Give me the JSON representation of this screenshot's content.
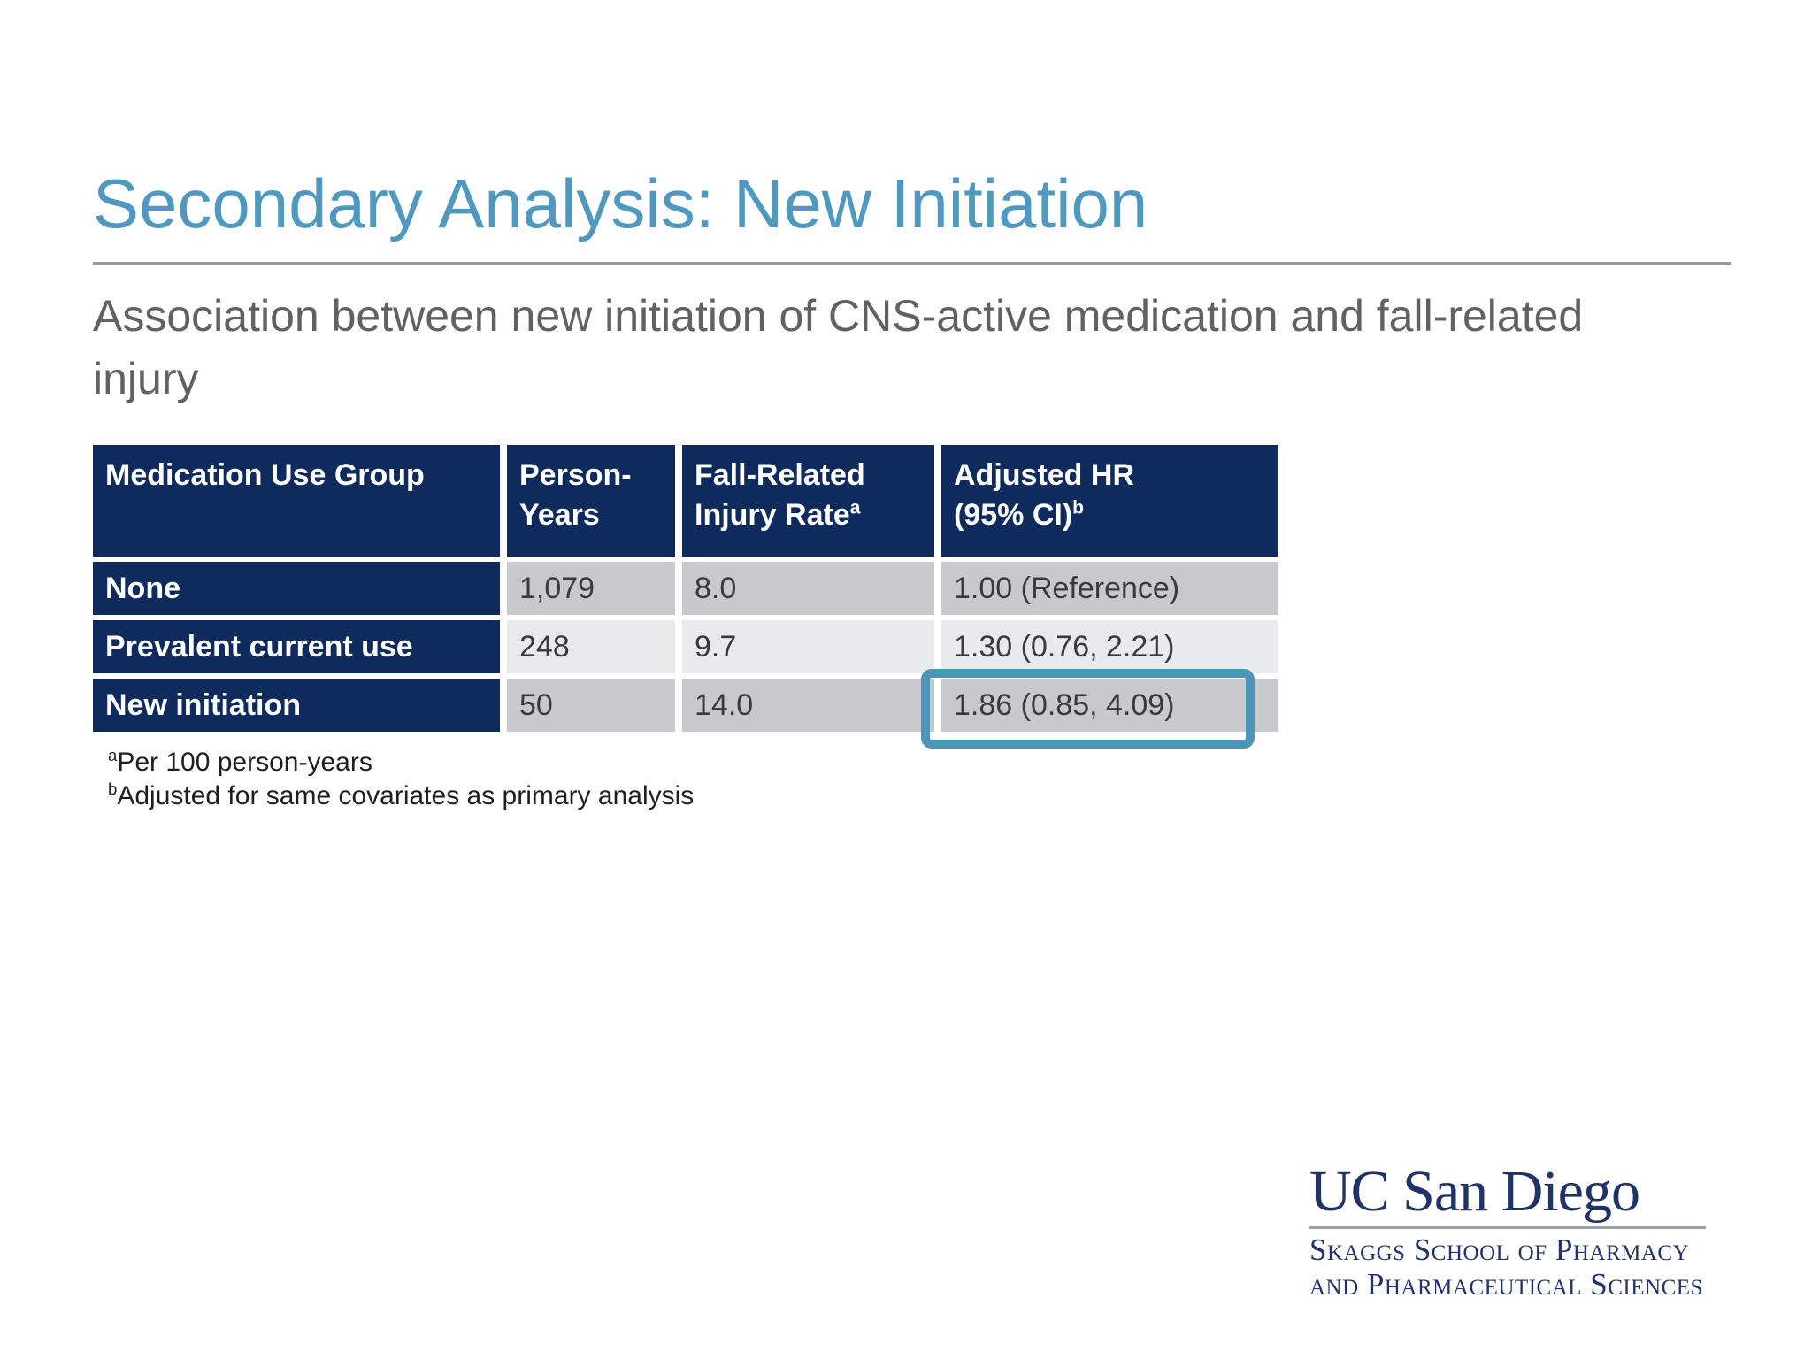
{
  "title": "Secondary Analysis: New Initiation",
  "subtitle": "Association between new initiation of CNS-active medication and fall-related injury",
  "table": {
    "headers": [
      {
        "line1": "Medication Use Group",
        "line2": "",
        "sup": ""
      },
      {
        "line1": "Person-",
        "line2": "Years",
        "sup": ""
      },
      {
        "line1": "Fall-Related",
        "line2": "Injury Rate",
        "sup": "a"
      },
      {
        "line1": "Adjusted HR",
        "line2": "(95% CI)",
        "sup": "b"
      }
    ],
    "rows": [
      {
        "group": "None",
        "person_years": "1,079",
        "injury_rate": "8.0",
        "adjusted_hr": "1.00 (Reference)"
      },
      {
        "group": "Prevalent current use",
        "person_years": "248",
        "injury_rate": "9.7",
        "adjusted_hr": "1.30 (0.76, 2.21)"
      },
      {
        "group": "New initiation",
        "person_years": "50",
        "injury_rate": "14.0",
        "adjusted_hr": "1.86 (0.85, 4.09)"
      }
    ]
  },
  "footnotes": [
    {
      "sup": "a",
      "text": "Per 100 person-years"
    },
    {
      "sup": "b",
      "text": "Adjusted for same covariates as primary analysis"
    }
  ],
  "logo": {
    "line1": "UC San Diego",
    "line2": "Skaggs School of Pharmacy",
    "line3": "and Pharmaceutical Sciences"
  },
  "colors": {
    "navy": "#0F2A5C",
    "title-blue": "#4F99C0",
    "highlight": "#4C95B7",
    "row-gray": "#C7C9CC",
    "row-light": "#E8EAEB",
    "subtitle-gray": "#616161",
    "rule-gray": "#999999",
    "data-text": "#3A3A3A",
    "footnote-color": "#1E1E1E",
    "logo-navy": "#203368",
    "logo-rule": "#9BA0A8"
  }
}
